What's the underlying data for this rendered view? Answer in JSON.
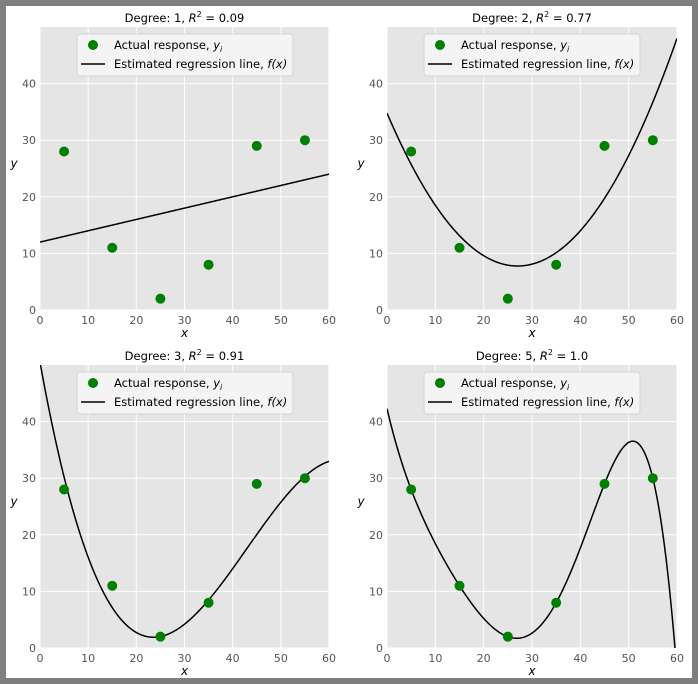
{
  "chart_data": [
    {
      "type": "scatter",
      "title": "Degree: 1, R² = 0.09",
      "title_prefix": "Degree: 1, ",
      "r2_label": "R",
      "r2_value": " = 0.09",
      "xlabel": "x",
      "ylabel": "y",
      "xlim": [
        0,
        60
      ],
      "ylim": [
        0,
        50
      ],
      "xticks": [
        "0",
        "10",
        "20",
        "30",
        "40",
        "50",
        "60"
      ],
      "yticks": [
        "0",
        "10",
        "20",
        "30",
        "40"
      ],
      "grid": true,
      "legend_placement": "top-center",
      "series": [
        {
          "name": "Actual response, yᵢ",
          "kind": "points",
          "x": [
            5,
            15,
            25,
            35,
            45,
            55
          ],
          "y": [
            28,
            11,
            2,
            8,
            29,
            30
          ]
        },
        {
          "name": "Estimated regression line, f(x)",
          "kind": "line",
          "degree": 1,
          "coefficients": [
            12.0,
            0.2
          ]
        }
      ]
    },
    {
      "type": "scatter",
      "title": "Degree: 2, R² = 0.77",
      "title_prefix": "Degree: 2, ",
      "r2_label": "R",
      "r2_value": " = 0.77",
      "xlabel": "x",
      "ylabel": "y",
      "xlim": [
        0,
        60
      ],
      "ylim": [
        0,
        50
      ],
      "xticks": [
        "0",
        "10",
        "20",
        "30",
        "40",
        "50",
        "60"
      ],
      "yticks": [
        "0",
        "10",
        "20",
        "30",
        "40"
      ],
      "grid": true,
      "legend_placement": "top-center",
      "series": [
        {
          "name": "Actual response, yᵢ",
          "kind": "points",
          "x": [
            5,
            15,
            25,
            35,
            45,
            55
          ],
          "y": [
            28,
            11,
            2,
            8,
            29,
            30
          ]
        },
        {
          "name": "Estimated regression line, f(x)",
          "kind": "line",
          "degree": 2,
          "coefficients": [
            34.8,
            -2.0,
            0.037
          ]
        }
      ]
    },
    {
      "type": "scatter",
      "title": "Degree: 3, R² = 0.91",
      "title_prefix": "Degree: 3, ",
      "r2_label": "R",
      "r2_value": " = 0.91",
      "xlabel": "x",
      "ylabel": "y",
      "xlim": [
        0,
        60
      ],
      "ylim": [
        0,
        50
      ],
      "xticks": [
        "0",
        "10",
        "20",
        "30",
        "40",
        "50",
        "60"
      ],
      "yticks": [
        "0",
        "10",
        "20",
        "30",
        "40"
      ],
      "grid": true,
      "legend_placement": "top-center",
      "series": [
        {
          "name": "Actual response, yᵢ",
          "kind": "points",
          "x": [
            5,
            15,
            25,
            35,
            45,
            55
          ],
          "y": [
            28,
            11,
            2,
            8,
            29,
            30
          ]
        },
        {
          "name": "Estimated regression line, f(x)",
          "kind": "line",
          "degree": 3,
          "coefficients": [
            50.5,
            -4.72,
            0.138,
            -0.00107
          ]
        }
      ]
    },
    {
      "type": "scatter",
      "title": "Degree: 5, R² = 1.0",
      "title_prefix": "Degree: 5, ",
      "r2_label": "R",
      "r2_value": " = 1.0",
      "xlabel": "x",
      "ylabel": "y",
      "xlim": [
        0,
        60
      ],
      "ylim": [
        0,
        50
      ],
      "xticks": [
        "0",
        "10",
        "20",
        "30",
        "40",
        "50",
        "60"
      ],
      "yticks": [
        "0",
        "10",
        "20",
        "30",
        "40"
      ],
      "grid": true,
      "legend_placement": "top-center",
      "series": [
        {
          "name": "Actual response, yᵢ",
          "kind": "points",
          "x": [
            5,
            15,
            25,
            35,
            45,
            55
          ],
          "y": [
            28,
            11,
            2,
            8,
            29,
            30
          ]
        },
        {
          "name": "Estimated regression line, f(x)",
          "kind": "line",
          "degree": 5,
          "interpolates_points": true
        }
      ]
    }
  ],
  "legend": {
    "points_label": "Actual response, ",
    "points_var": "y",
    "points_sub": "i",
    "line_label": "Estimated regression line, ",
    "line_var": "f",
    "line_paren": "(x)"
  },
  "colors": {
    "points": "#008000",
    "line": "#000000",
    "plot_bg": "#e5e5e5",
    "grid": "#ffffff",
    "frame": "#7f7f7f",
    "tick_text": "#555555"
  }
}
